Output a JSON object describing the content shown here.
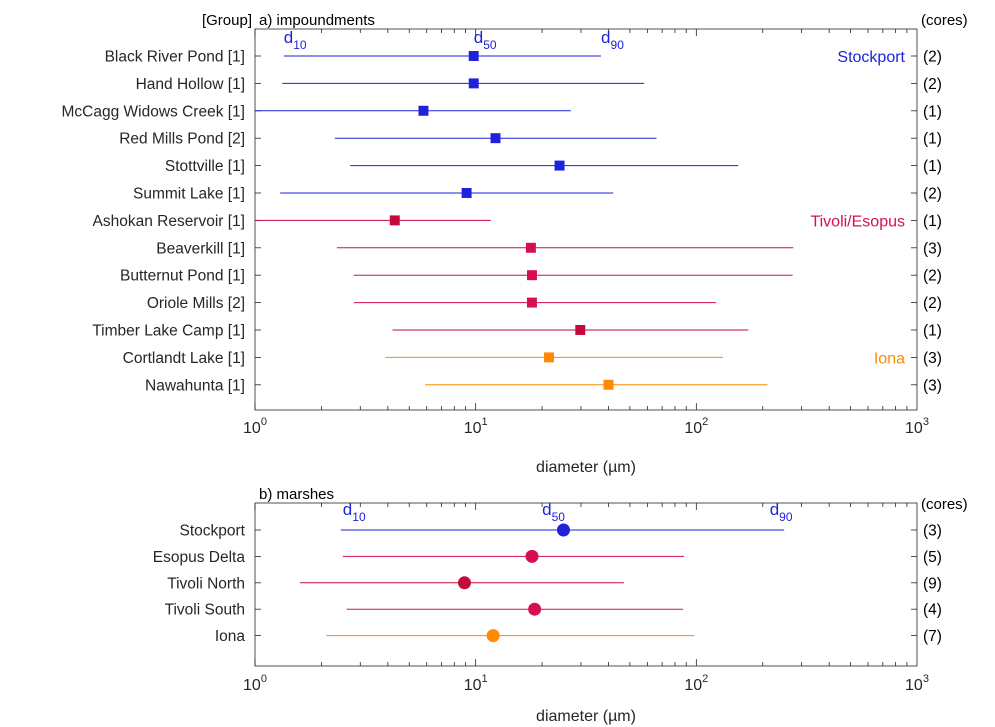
{
  "chart_data": [
    {
      "type": "range",
      "panel_title": "a) impoundments",
      "left_header": "[Group]",
      "right_header": "(cores)",
      "xlabel": "diameter (µm)",
      "xscale": "log",
      "xlim": [
        1,
        1000
      ],
      "x_ticks": [
        {
          "base": "10",
          "exp": "0"
        },
        {
          "base": "10",
          "exp": "1"
        },
        {
          "base": "10",
          "exp": "2"
        },
        {
          "base": "10",
          "exp": "3"
        }
      ],
      "marker": "square",
      "percentile_labels": [
        {
          "base": "d",
          "sub": "10",
          "x": 1.35
        },
        {
          "base": "d",
          "sub": "50",
          "x": 9.8
        },
        {
          "base": "d",
          "sub": "90",
          "x": 37
        }
      ],
      "group_labels": [
        {
          "text": "Stockport",
          "group": "stockport",
          "row": 0
        },
        {
          "text": "Tivoli/Esopus",
          "group": "tivoli",
          "row": 6
        },
        {
          "text": "Iona",
          "group": "iona",
          "row": 11
        }
      ],
      "rows": [
        {
          "label": "Black River Pond [1]",
          "cores": "(2)",
          "group": "stockport",
          "d10": 1.35,
          "d50": 9.8,
          "d90": 37
        },
        {
          "label": "Hand Hollow [1]",
          "cores": "(2)",
          "group": "stockport",
          "d10": 1.33,
          "d50": 9.8,
          "d90": 58
        },
        {
          "label": "McCagg Widows Creek [1]",
          "cores": "(1)",
          "group": "stockport",
          "d10": 1.0,
          "d50": 5.8,
          "d90": 27
        },
        {
          "label": "Red Mills Pond [2]",
          "cores": "(1)",
          "group": "stockport",
          "d10": 2.3,
          "d50": 12.3,
          "d90": 66
        },
        {
          "label": "Stottville [1]",
          "cores": "(1)",
          "group": "stockport",
          "d10": 2.7,
          "d50": 24,
          "d90": 155
        },
        {
          "label": "Summit Lake [1]",
          "cores": "(2)",
          "group": "stockport",
          "d10": 1.3,
          "d50": 9.1,
          "d90": 42
        },
        {
          "label": "Ashokan Reservoir [1]",
          "cores": "(1)",
          "group": "tivoli_dark",
          "d10": 1.0,
          "d50": 4.3,
          "d90": 11.7
        },
        {
          "label": "Beaverkill [1]",
          "cores": "(3)",
          "group": "tivoli",
          "d10": 2.35,
          "d50": 17.8,
          "d90": 275
        },
        {
          "label": "Butternut Pond [1]",
          "cores": "(2)",
          "group": "tivoli",
          "d10": 2.8,
          "d50": 18.0,
          "d90": 273
        },
        {
          "label": "Oriole Mills [2]",
          "cores": "(2)",
          "group": "tivoli",
          "d10": 2.8,
          "d50": 18.0,
          "d90": 123
        },
        {
          "label": "Timber Lake Camp [1]",
          "cores": "(1)",
          "group": "tivoli_dark",
          "d10": 4.2,
          "d50": 29.8,
          "d90": 172
        },
        {
          "label": "Cortlandt Lake [1]",
          "cores": "(3)",
          "group": "iona",
          "d10": 3.9,
          "d50": 21.5,
          "d90": 132
        },
        {
          "label": "Nawahunta [1]",
          "cores": "(3)",
          "group": "iona",
          "d10": 5.9,
          "d50": 40,
          "d90": 210
        }
      ]
    },
    {
      "type": "range",
      "panel_title": "b) marshes",
      "left_header": "",
      "right_header": "(cores)",
      "xlabel": "diameter (µm)",
      "xscale": "log",
      "xlim": [
        1,
        1000
      ],
      "x_ticks": [
        {
          "base": "10",
          "exp": "0"
        },
        {
          "base": "10",
          "exp": "1"
        },
        {
          "base": "10",
          "exp": "2"
        },
        {
          "base": "10",
          "exp": "3"
        }
      ],
      "marker": "circle",
      "percentile_labels": [
        {
          "base": "d",
          "sub": "10",
          "x": 2.5
        },
        {
          "base": "d",
          "sub": "50",
          "x": 20
        },
        {
          "base": "d",
          "sub": "90",
          "x": 215
        }
      ],
      "group_labels": [],
      "rows": [
        {
          "label": "Stockport",
          "cores": "(3)",
          "group": "stockport",
          "d10": 2.45,
          "d50": 25,
          "d90": 250
        },
        {
          "label": "Esopus Delta",
          "cores": "(5)",
          "group": "tivoli",
          "d10": 2.5,
          "d50": 18,
          "d90": 88
        },
        {
          "label": "Tivoli North",
          "cores": "(9)",
          "group": "tivoli_dark",
          "d10": 1.6,
          "d50": 8.9,
          "d90": 47
        },
        {
          "label": "Tivoli South",
          "cores": "(4)",
          "group": "tivoli",
          "d10": 2.6,
          "d50": 18.5,
          "d90": 87
        },
        {
          "label": "Iona",
          "cores": "(7)",
          "group": "iona",
          "d10": 2.1,
          "d50": 12,
          "d90": 98
        }
      ]
    }
  ],
  "colors": {
    "stockport": "#1f22d8",
    "tivoli": "#d6104e",
    "tivoli_dark": "#c40a3a",
    "iona": "#ff8a00",
    "text": "#262626",
    "axis": "#262626"
  }
}
